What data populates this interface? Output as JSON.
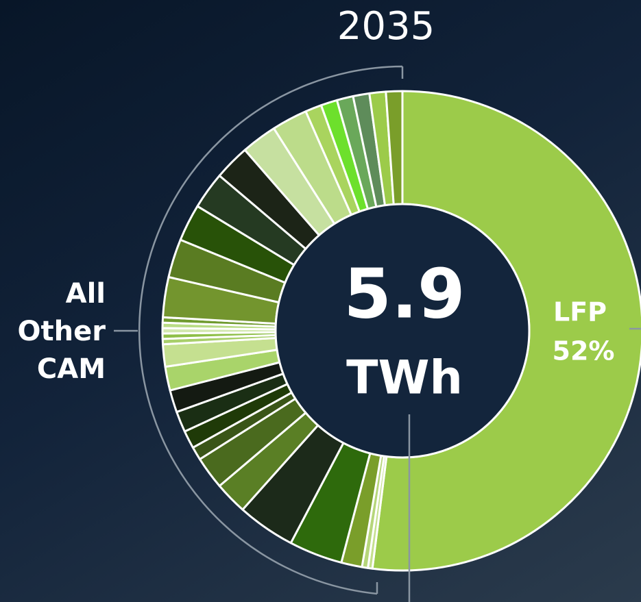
{
  "chart_data": {
    "type": "donut",
    "title": "2035",
    "center_value": 5.9,
    "center_unit": "TWh",
    "group_label": "All Other CAM",
    "categories": [
      "LFP",
      null,
      null,
      null,
      null,
      null,
      null,
      null,
      null,
      null,
      null,
      null,
      null,
      null,
      null,
      null,
      null,
      null,
      null,
      null,
      null,
      null,
      null,
      null,
      null,
      null,
      null,
      null,
      null,
      null,
      null,
      null
    ],
    "values": [
      52,
      0.3,
      0.4,
      1.4,
      3.6,
      3.9,
      2.2,
      2.2,
      0.9,
      1.2,
      1.4,
      1.5,
      1.6,
      1.5,
      0.36,
      0.36,
      0.36,
      0.36,
      0.36,
      2.7,
      2.6,
      2.5,
      2.5,
      2.4,
      2.4,
      2.4,
      1.1,
      1.1,
      1.1,
      1.1,
      1.1,
      1.1
    ],
    "value_labels": [
      "52%",
      null,
      null,
      null,
      null,
      null,
      null,
      null,
      null,
      null,
      null,
      null,
      null,
      null,
      null,
      null,
      null,
      null,
      null,
      null,
      null,
      null,
      null,
      null,
      null,
      null,
      null,
      null,
      null,
      null,
      null,
      null
    ],
    "colors": [
      "#9ccb4a",
      "#c5e08e",
      "#b6d67a",
      "#7a9e2a",
      "#2e6a0c",
      "#1c2a1a",
      "#5a7f25",
      "#4a6a1e",
      "#3a5518",
      "#1f3a08",
      "#1a2e14",
      "#141a12",
      "#a9d46a",
      "#c5e090",
      "#a8cf6a",
      "#8fbf48",
      "#d3e8b0",
      "#b9dc85",
      "#6f9a2e",
      "#73952e",
      "#5a7c22",
      "#285208",
      "#253a22",
      "#1c2417",
      "#c6e0a0",
      "#bcdc8a",
      "#a9d45e",
      "#6de02c",
      "#6aa85a",
      "#5e8c5a",
      "#9ccb4a",
      "#7a9e2a"
    ]
  }
}
